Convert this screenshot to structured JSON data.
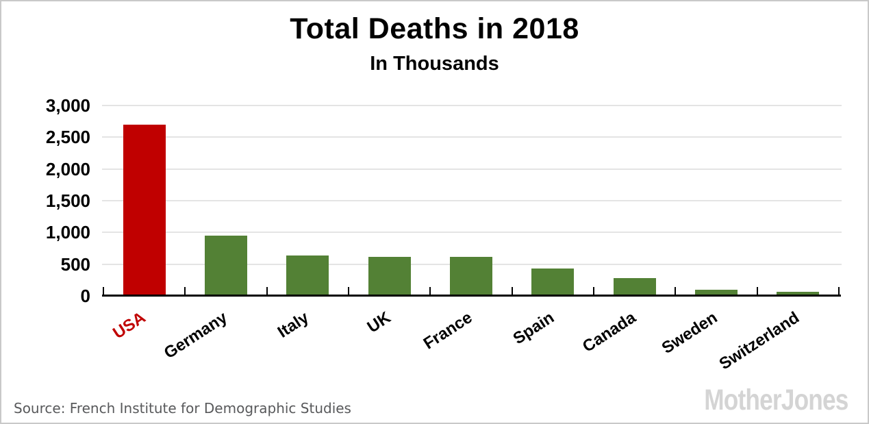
{
  "header": {
    "title": "Total Deaths in 2018",
    "subtitle": "In Thousands"
  },
  "footer": {
    "source": "Source: French Institute for Demographic Studies",
    "logo": "MotherJones"
  },
  "colors": {
    "highlight_bar": "#c00000",
    "default_bar": "#538135",
    "highlight_label": "#c00000",
    "default_label": "#000000",
    "gridline": "#e4e4e4",
    "axis": "#000000",
    "source_text": "#58595b",
    "logo_text": "#d4d4d4",
    "border": "#c9c9c9"
  },
  "chart_data": {
    "type": "bar",
    "title": "Total Deaths in 2018",
    "subtitle": "In Thousands",
    "categories": [
      "USA",
      "Germany",
      "Italy",
      "UK",
      "France",
      "Spain",
      "Canada",
      "Sweden",
      "Switzerland"
    ],
    "values": [
      2700,
      955,
      633,
      616,
      610,
      427,
      283,
      92,
      67
    ],
    "bar_colors": [
      "#c00000",
      "#538135",
      "#538135",
      "#538135",
      "#538135",
      "#538135",
      "#538135",
      "#538135",
      "#538135"
    ],
    "label_colors": [
      "#c00000",
      "#000000",
      "#000000",
      "#000000",
      "#000000",
      "#000000",
      "#000000",
      "#000000",
      "#000000"
    ],
    "highlighted_category": "USA",
    "xlabel": "",
    "ylabel": "",
    "ylim": [
      0,
      3000
    ],
    "yticks": [
      0,
      500,
      1000,
      1500,
      2000,
      2500,
      3000
    ],
    "ytick_labels": [
      "0",
      "500",
      "1,000",
      "1,500",
      "2,000",
      "2,500",
      "3,000"
    ],
    "grid": "horizontal",
    "legend": "none",
    "x_label_rotation_deg": -33
  }
}
